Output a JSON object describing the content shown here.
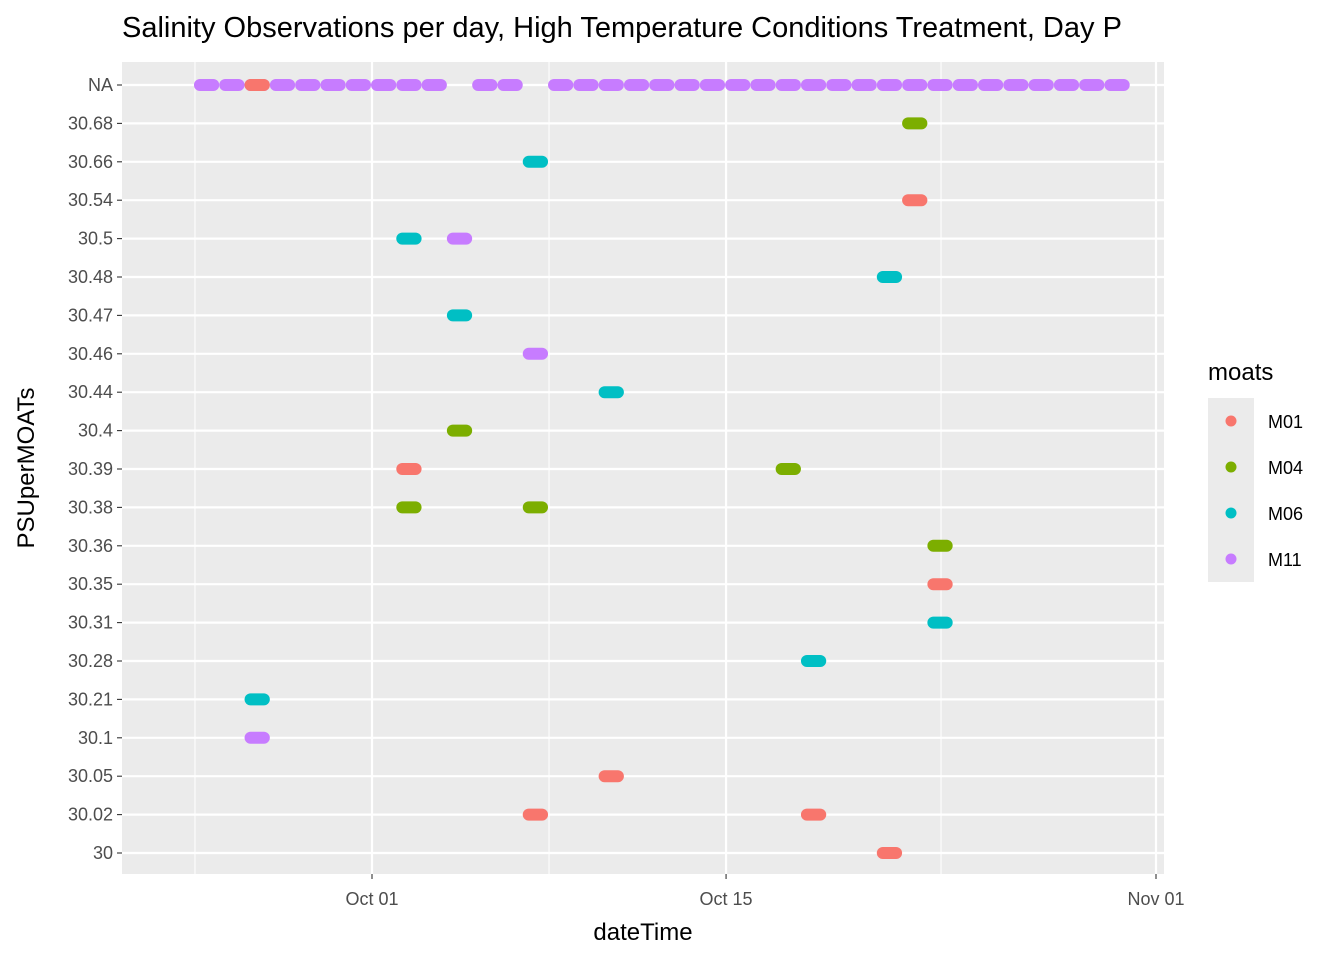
{
  "chart_data": {
    "type": "scatter",
    "title": "Salinity Observations per day, High Temperature Conditions Treatment, Day P",
    "xlabel": "dateTime",
    "ylabel": "PSUperMOATs",
    "x_ticks": [
      {
        "label": "Oct 01",
        "date": "2019-10-01"
      },
      {
        "label": "Oct 15",
        "date": "2019-10-15"
      },
      {
        "label": "Nov 01",
        "date": "2019-11-01"
      }
    ],
    "x_range": [
      "2019-09-22",
      "2019-11-01"
    ],
    "y_categories": [
      "NA",
      "30.68",
      "30.66",
      "30.54",
      "30.5",
      "30.48",
      "30.47",
      "30.46",
      "30.44",
      "30.4",
      "30.39",
      "30.38",
      "30.36",
      "30.35",
      "30.31",
      "30.28",
      "30.21",
      "30.1",
      "30.05",
      "30.02",
      "30"
    ],
    "grid": true,
    "legend": {
      "title": "moats",
      "position": "right"
    },
    "series": [
      {
        "name": "M01",
        "color": "#F8766D",
        "points": [
          {
            "x": "2019-09-26",
            "y": "NA"
          },
          {
            "x": "2019-10-02",
            "y": "30.39"
          },
          {
            "x": "2019-10-07",
            "y": "30.02"
          },
          {
            "x": "2019-10-10",
            "y": "30.05"
          },
          {
            "x": "2019-10-18",
            "y": "30.02"
          },
          {
            "x": "2019-10-21",
            "y": "30"
          },
          {
            "x": "2019-10-22",
            "y": "30.54"
          },
          {
            "x": "2019-10-23",
            "y": "30.35"
          }
        ]
      },
      {
        "name": "M04",
        "color": "#7CAE00",
        "points": [
          {
            "x": "2019-10-02",
            "y": "30.38"
          },
          {
            "x": "2019-10-04",
            "y": "30.4"
          },
          {
            "x": "2019-10-07",
            "y": "30.38"
          },
          {
            "x": "2019-10-17",
            "y": "30.39"
          },
          {
            "x": "2019-10-22",
            "y": "30.68"
          },
          {
            "x": "2019-10-23",
            "y": "30.36"
          }
        ]
      },
      {
        "name": "M06",
        "color": "#00BFC4",
        "points": [
          {
            "x": "2019-09-26",
            "y": "30.21"
          },
          {
            "x": "2019-10-02",
            "y": "30.5"
          },
          {
            "x": "2019-10-04",
            "y": "30.47"
          },
          {
            "x": "2019-10-07",
            "y": "30.66"
          },
          {
            "x": "2019-10-10",
            "y": "30.44"
          },
          {
            "x": "2019-10-18",
            "y": "30.28"
          },
          {
            "x": "2019-10-21",
            "y": "30.48"
          },
          {
            "x": "2019-10-23",
            "y": "30.31"
          }
        ]
      },
      {
        "name": "M11",
        "color": "#C77CFF",
        "points": [
          {
            "x": "2019-09-26",
            "y": "30.1"
          },
          {
            "x": "2019-10-04",
            "y": "30.5"
          },
          {
            "x": "2019-10-07",
            "y": "30.46"
          }
        ],
        "na_days": [
          "2019-09-24",
          "2019-09-25",
          "2019-09-26",
          "2019-09-27",
          "2019-09-28",
          "2019-09-29",
          "2019-09-30",
          "2019-10-01",
          "2019-10-02",
          "2019-10-03",
          "2019-10-05",
          "2019-10-06",
          "2019-10-08",
          "2019-10-09",
          "2019-10-10",
          "2019-10-11",
          "2019-10-12",
          "2019-10-13",
          "2019-10-14",
          "2019-10-15",
          "2019-10-16",
          "2019-10-17",
          "2019-10-18",
          "2019-10-19",
          "2019-10-20",
          "2019-10-21",
          "2019-10-22",
          "2019-10-23",
          "2019-10-24",
          "2019-10-25",
          "2019-10-26",
          "2019-10-27",
          "2019-10-28",
          "2019-10-29",
          "2019-10-30"
        ]
      }
    ]
  }
}
